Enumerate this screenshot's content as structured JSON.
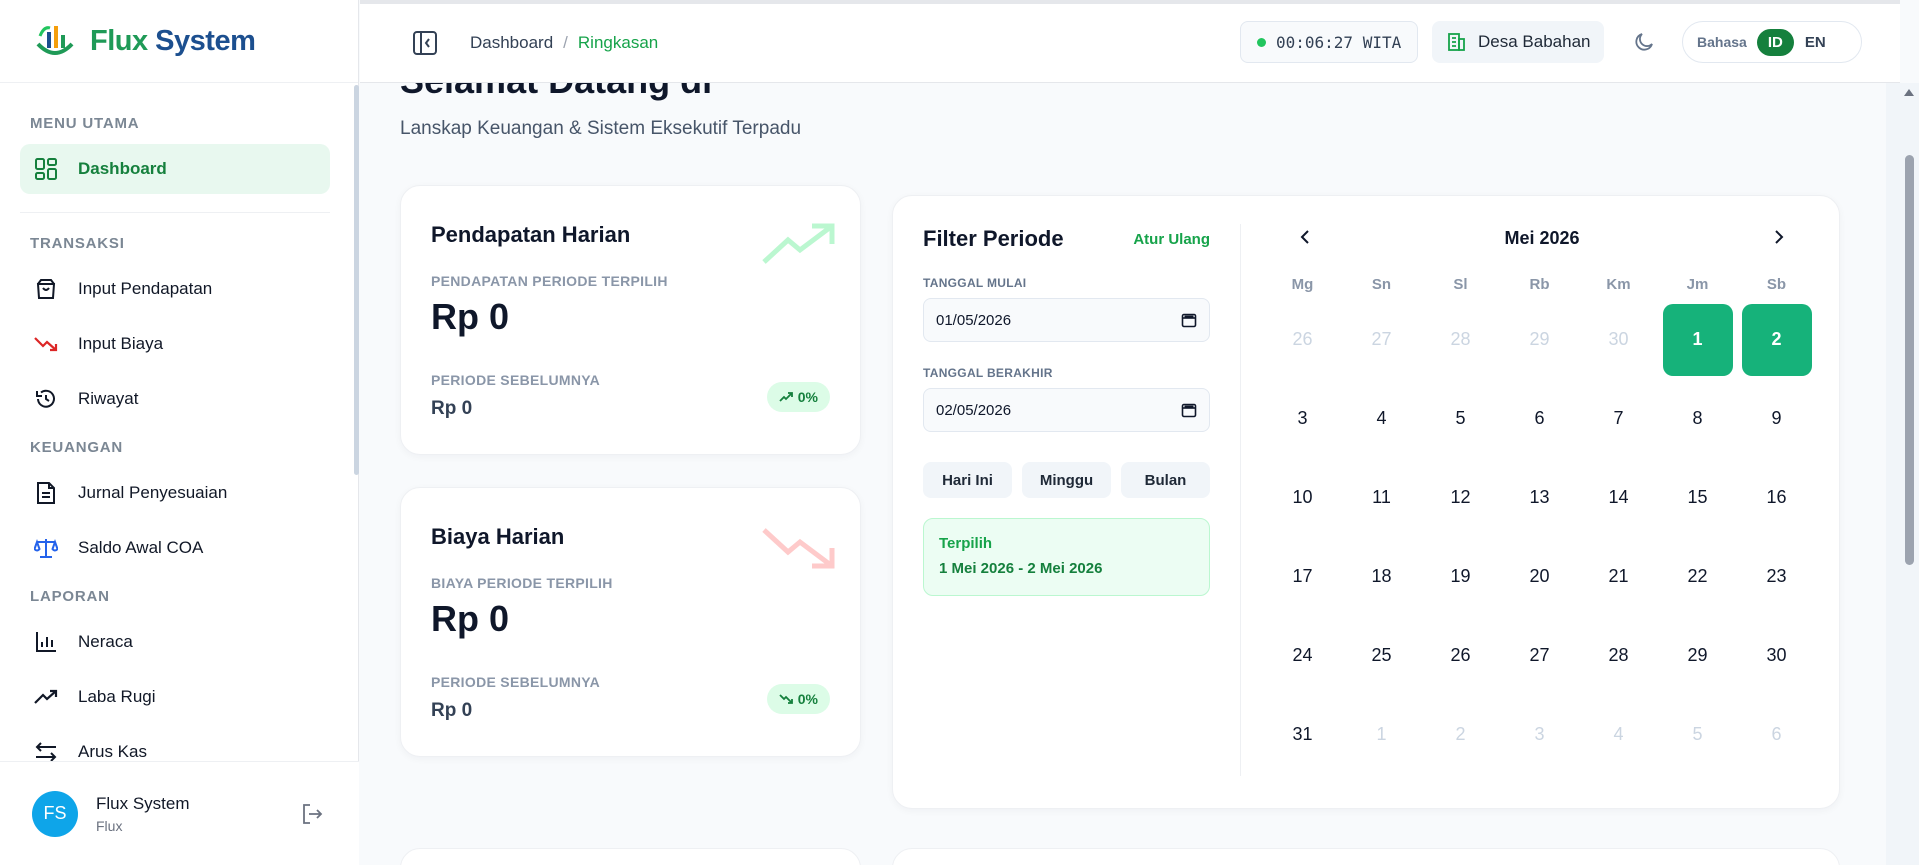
{
  "brand": {
    "name_a": "Flux",
    "name_b": " System"
  },
  "sidebar": {
    "sections": [
      {
        "title": "MENU UTAMA",
        "items": [
          {
            "label": "Dashboard",
            "icon": "grid-icon",
            "active": true
          }
        ]
      },
      {
        "title": "TRANSAKSI",
        "items": [
          {
            "label": "Input Pendapatan",
            "icon": "bag-icon"
          },
          {
            "label": "Input Biaya",
            "icon": "trend-down-icon"
          },
          {
            "label": "Riwayat",
            "icon": "history-icon"
          }
        ]
      },
      {
        "title": "KEUANGAN",
        "items": [
          {
            "label": "Jurnal Penyesuaian",
            "icon": "document-icon"
          },
          {
            "label": "Saldo Awal COA",
            "icon": "scale-icon"
          }
        ]
      },
      {
        "title": "LAPORAN",
        "items": [
          {
            "label": "Neraca",
            "icon": "bar-chart-icon"
          },
          {
            "label": "Laba Rugi",
            "icon": "trend-up-icon"
          },
          {
            "label": "Arus Kas",
            "icon": "arrows-icon"
          }
        ]
      }
    ],
    "user": {
      "initials": "FS",
      "name": "Flux System",
      "role": "Flux"
    }
  },
  "header": {
    "breadcrumb": {
      "root": "Dashboard",
      "separator": "/",
      "current": "Ringkasan"
    },
    "clock": "00:06:27 WITA",
    "village": "Desa Babahan",
    "language": {
      "label": "Bahasa",
      "options": [
        "ID",
        "EN"
      ],
      "selected": "ID"
    }
  },
  "main": {
    "welcome_title": "Selamat Datang di",
    "welcome_sub": "Lanskap Keuangan & Sistem Eksekutif Terpadu",
    "income_card": {
      "title": "Pendapatan Harian",
      "period_label": "PENDAPATAN PERIODE TERPILIH",
      "amount": "Rp 0",
      "prev_label": "PERIODE SEBELUMNYA",
      "prev_amount": "Rp 0",
      "change": "0%"
    },
    "cost_card": {
      "title": "Biaya Harian",
      "period_label": "BIAYA PERIODE TERPILIH",
      "amount": "Rp 0",
      "prev_label": "PERIODE SEBELUMNYA",
      "prev_amount": "Rp 0",
      "change": "0%"
    },
    "filter": {
      "title": "Filter Periode",
      "reset": "Atur Ulang",
      "start_label": "TANGGAL MULAI",
      "start_value": "01/05/2026",
      "end_label": "TANGGAL BERAKHIR",
      "end_value": "02/05/2026",
      "quick": [
        "Hari Ini",
        "Minggu",
        "Bulan"
      ],
      "selected_label": "Terpilih",
      "selected_range": "1 Mei 2026 - 2 Mei 2026"
    },
    "calendar": {
      "month": "Mei 2026",
      "weekdays": [
        "Mg",
        "Sn",
        "Sl",
        "Rb",
        "Km",
        "Jm",
        "Sb"
      ],
      "days": [
        [
          "26",
          "27",
          "28",
          "29",
          "30",
          "1",
          "2"
        ],
        [
          "3",
          "4",
          "5",
          "6",
          "7",
          "8",
          "9"
        ],
        [
          "10",
          "11",
          "12",
          "13",
          "14",
          "15",
          "16"
        ],
        [
          "17",
          "18",
          "19",
          "20",
          "21",
          "22",
          "23"
        ],
        [
          "24",
          "25",
          "26",
          "27",
          "28",
          "29",
          "30"
        ],
        [
          "31",
          "1",
          "2",
          "3",
          "4",
          "5",
          "6"
        ]
      ],
      "muted": [
        [
          0,
          0
        ],
        [
          0,
          1
        ],
        [
          0,
          2
        ],
        [
          0,
          3
        ],
        [
          0,
          4
        ],
        [
          5,
          1
        ],
        [
          5,
          2
        ],
        [
          5,
          3
        ],
        [
          5,
          4
        ],
        [
          5,
          5
        ],
        [
          5,
          6
        ]
      ],
      "selected": [
        [
          0,
          5
        ],
        [
          0,
          6
        ]
      ]
    }
  },
  "colors": {
    "accent": "#16a34a",
    "selected_day": "#16b27a",
    "brand_blue": "#1c4f8f"
  }
}
